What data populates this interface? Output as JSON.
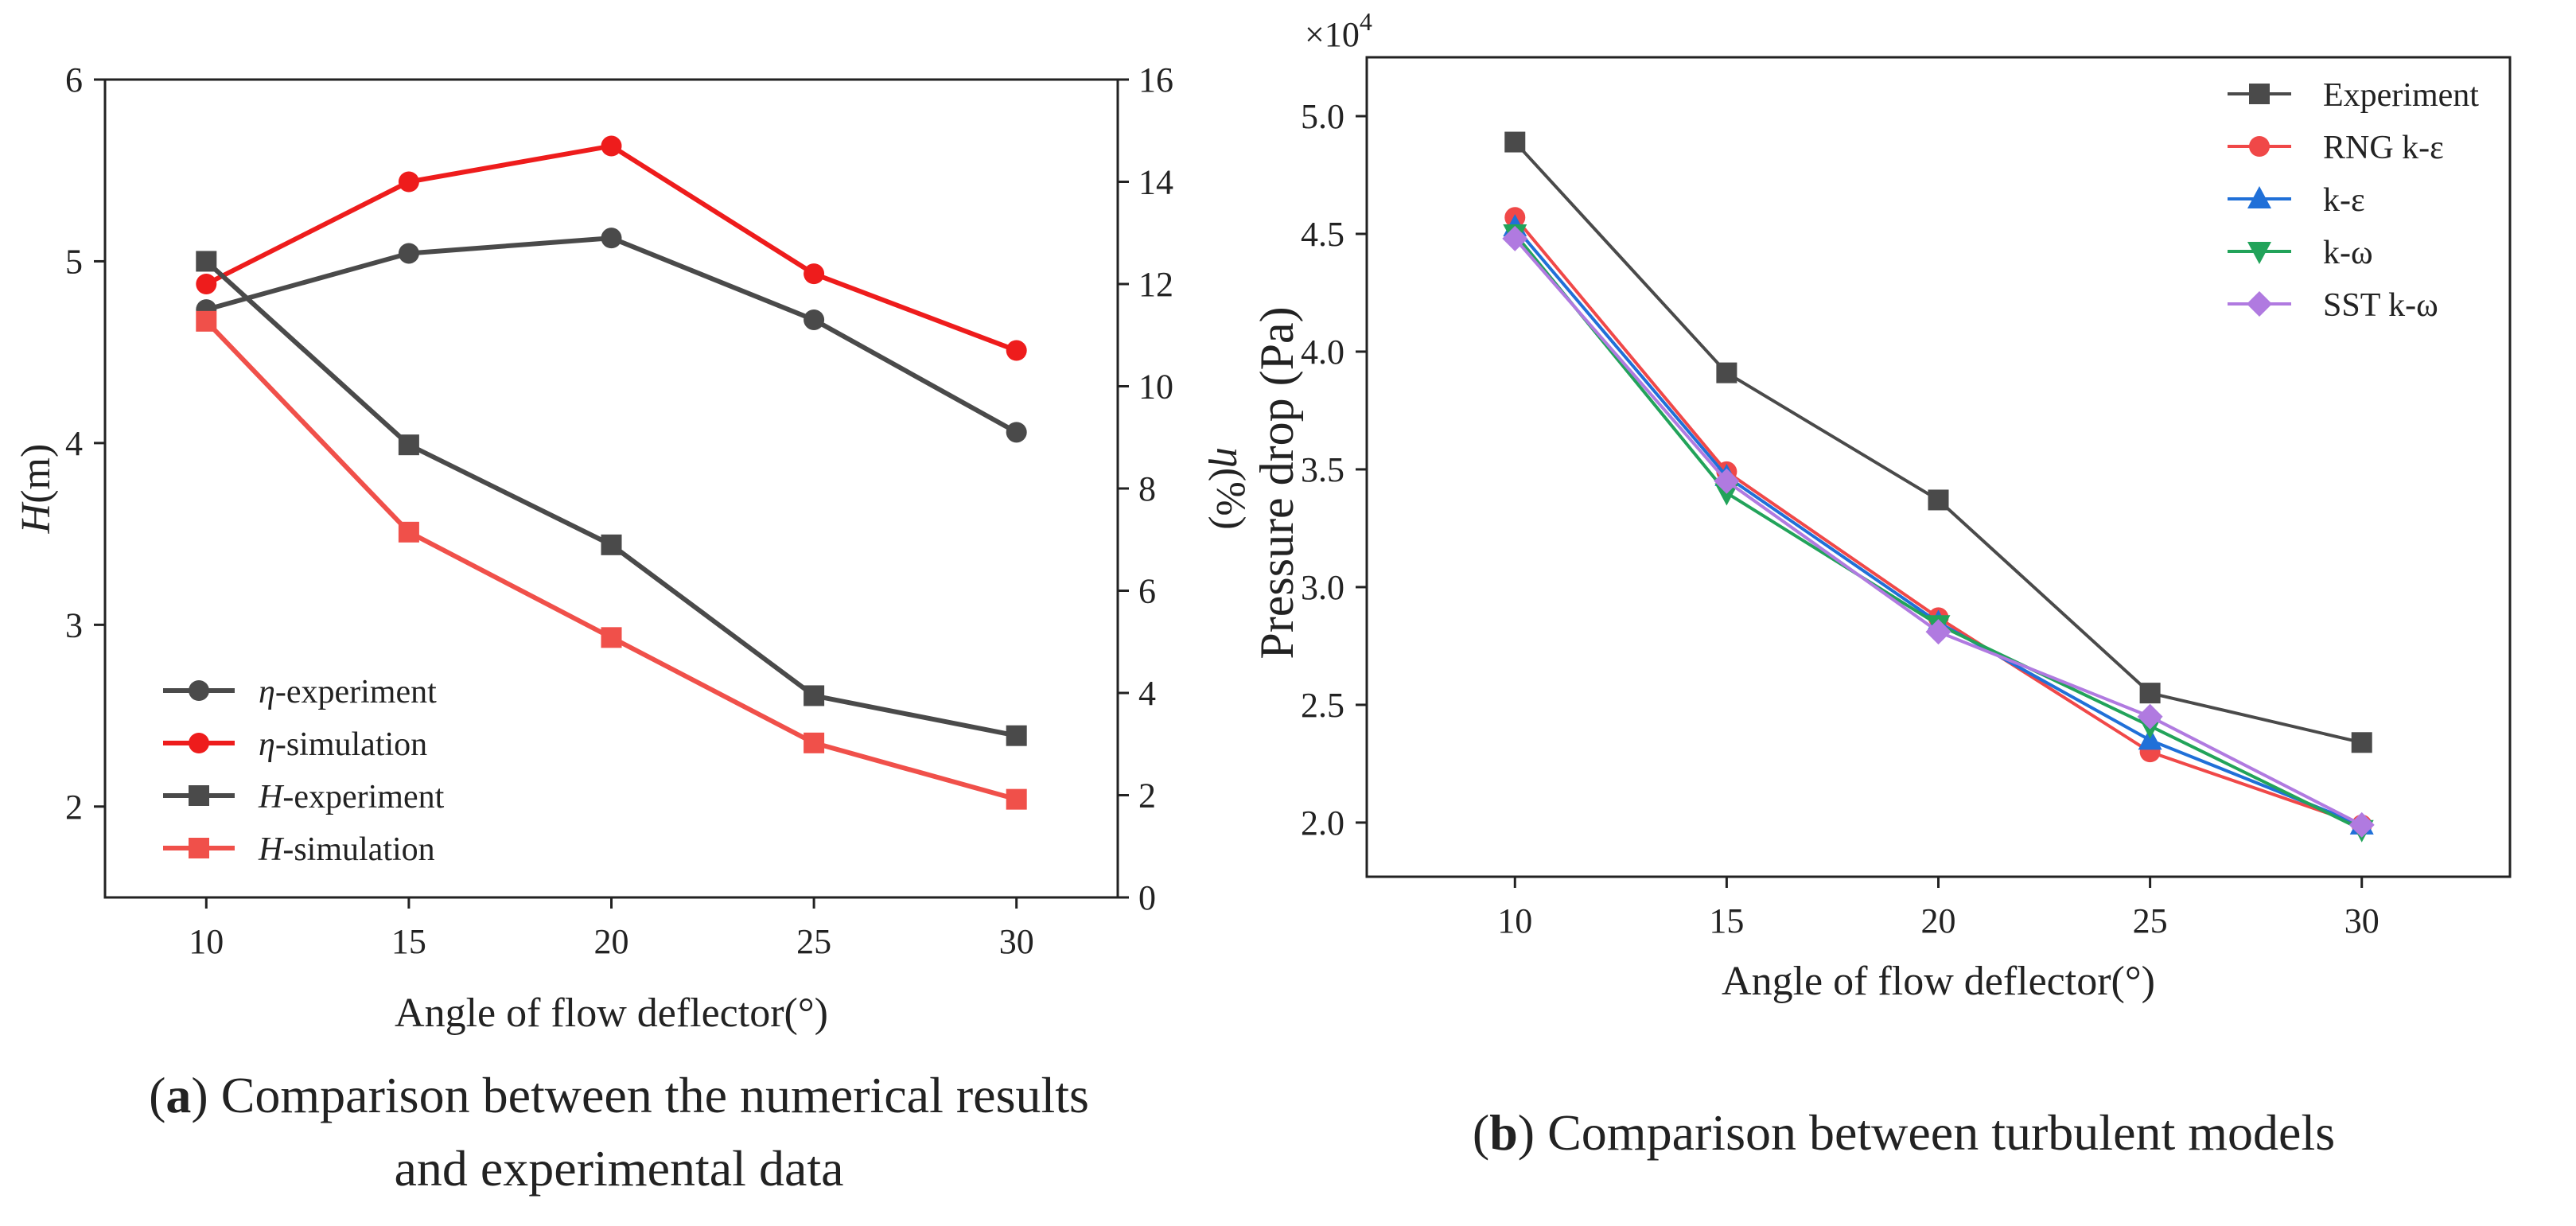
{
  "chart_data": [
    {
      "type": "line",
      "panel": "a",
      "caption_label": "a",
      "caption_lines": [
        "Comparison between the numerical results",
        "and experimental data"
      ],
      "xlabel": "Angle of flow deflector(°)",
      "ylabel_left": {
        "italic": "H",
        "rest": "(m)"
      },
      "ylabel_right": {
        "italic": "η",
        "rest": "(%)"
      },
      "x": [
        10,
        15,
        20,
        25,
        30
      ],
      "xlim": [
        7.5,
        32.5
      ],
      "ylim_left": [
        1.5,
        6
      ],
      "ylim_right": [
        0,
        16
      ],
      "xticks": [
        10,
        15,
        20,
        25,
        30
      ],
      "yticks_left": [
        2,
        3,
        4,
        5,
        6
      ],
      "yticks_right": [
        0,
        2,
        4,
        6,
        8,
        10,
        12,
        14,
        16
      ],
      "legend_position": "bottom-left",
      "series": [
        {
          "name_italic": "η",
          "name_rest": "-experiment",
          "axis": "right",
          "marker": "circle",
          "color": "#4a4a4a",
          "values": [
            11.5,
            12.6,
            12.9,
            11.3,
            9.1
          ]
        },
        {
          "name_italic": "η",
          "name_rest": "-simulation",
          "axis": "right",
          "marker": "circle",
          "color": "#ee1c1c",
          "values": [
            12.0,
            14.0,
            14.7,
            12.2,
            10.7
          ]
        },
        {
          "name_italic": "H",
          "name_rest": "-experiment",
          "axis": "left",
          "marker": "square",
          "color": "#4a4a4a",
          "values": [
            5.0,
            3.99,
            3.44,
            2.61,
            2.39
          ]
        },
        {
          "name_italic": "H",
          "name_rest": "-simulation",
          "axis": "left",
          "marker": "square",
          "color": "#f0504a",
          "values": [
            4.67,
            3.51,
            2.93,
            2.35,
            2.04
          ]
        }
      ]
    },
    {
      "type": "line",
      "panel": "b",
      "caption_label": "b",
      "caption_lines": [
        "Comparison between turbulent models"
      ],
      "xlabel": "Angle of flow deflector(°)",
      "ylabel": "Pressure drop (Pa)",
      "scale_base": "×10",
      "scale_exp": "4",
      "x": [
        10,
        15,
        20,
        25,
        30
      ],
      "xlim": [
        6.5,
        33.5
      ],
      "ylim": [
        1.77,
        5.25
      ],
      "xticks": [
        10,
        15,
        20,
        25,
        30
      ],
      "yticks": [
        "2.0",
        "2.5",
        "3.0",
        "3.5",
        "4.0",
        "4.5",
        "5.0"
      ],
      "legend_position": "top-right",
      "series": [
        {
          "name": "Experiment",
          "marker": "square",
          "color": "#4a4a4a",
          "values": [
            4.89,
            3.91,
            3.37,
            2.55,
            2.34
          ]
        },
        {
          "name": "RNG k-ε",
          "marker": "circle",
          "color": "#f04848",
          "values": [
            4.57,
            3.49,
            2.87,
            2.3,
            1.99
          ]
        },
        {
          "name": "k-ε",
          "marker": "triangle-up",
          "color": "#2070d8",
          "values": [
            4.53,
            3.47,
            2.85,
            2.35,
            1.99
          ]
        },
        {
          "name": "k-ω",
          "marker": "triangle-down",
          "color": "#22a35a",
          "values": [
            4.5,
            3.4,
            2.84,
            2.41,
            1.97
          ]
        },
        {
          "name": "SST k-ω",
          "marker": "diamond",
          "color": "#b07ae0",
          "values": [
            4.48,
            3.45,
            2.81,
            2.45,
            1.99
          ]
        }
      ]
    }
  ]
}
